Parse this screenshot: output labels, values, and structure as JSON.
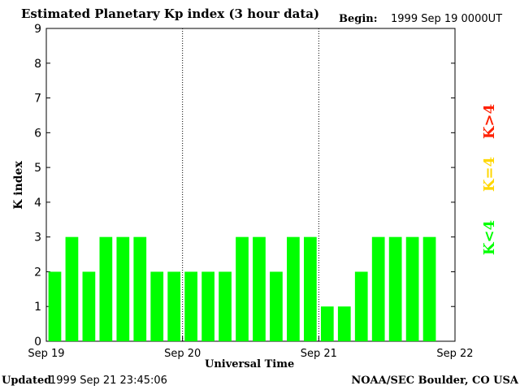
{
  "header": {
    "title": "Estimated Planetary Kp index (3 hour data)",
    "begin_label": "Begin:",
    "begin_value": "1999 Sep 19 0000UT"
  },
  "footer": {
    "updated_label": "Updated",
    "updated_value": "1999 Sep 21 23:45:06",
    "credit": "NOAA/SEC Boulder, CO USA"
  },
  "legend": {
    "items": [
      {
        "label": "K<4",
        "color": "#00ff00"
      },
      {
        "label": "K=4",
        "color": "#ffd700"
      },
      {
        "label": "K>4",
        "color": "#ff2000"
      }
    ]
  },
  "chart_data": {
    "type": "bar",
    "title": "Estimated Planetary Kp index (3 hour data)",
    "xlabel": "Universal Time",
    "ylabel": "K index",
    "ylim": [
      0,
      9
    ],
    "yticks": [
      "0",
      "1",
      "2",
      "3",
      "4",
      "5",
      "6",
      "7",
      "8",
      "9"
    ],
    "xticks": [
      "Sep 19",
      "Sep 20",
      "Sep 21",
      "Sep 22"
    ],
    "interval_hours": 3,
    "day_separators": "dotted",
    "bar_color": "#00ff00",
    "values": [
      2,
      3,
      2,
      3,
      3,
      3,
      2,
      2,
      2,
      2,
      2,
      3,
      3,
      2,
      3,
      3,
      1,
      1,
      2,
      3,
      3,
      3,
      3
    ]
  }
}
